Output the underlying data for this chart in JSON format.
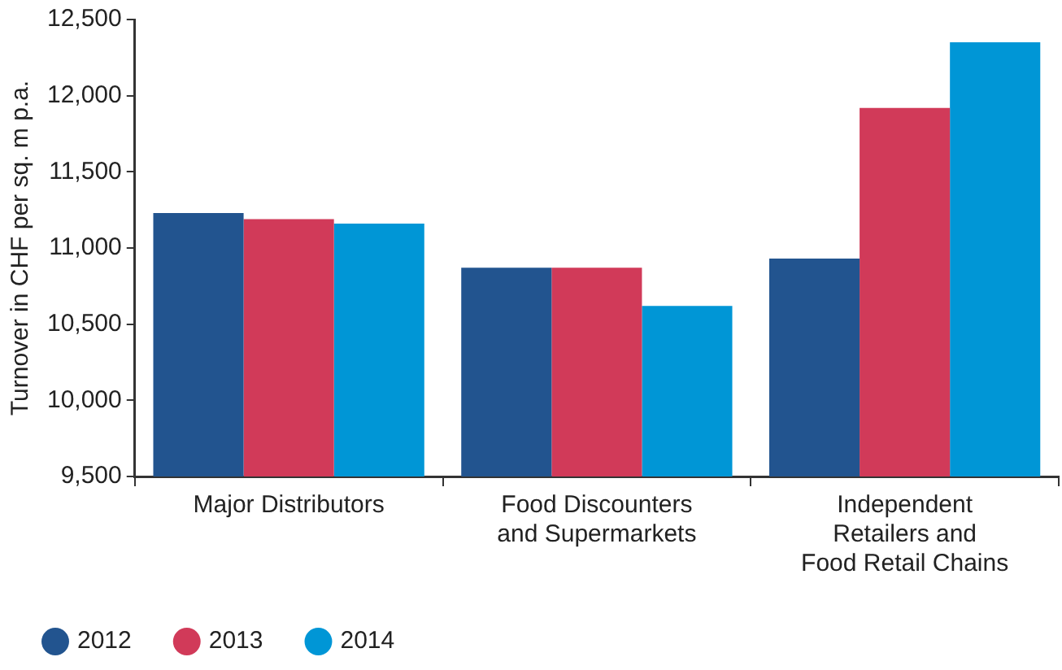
{
  "chart_data": {
    "type": "bar",
    "ylabel": "Turnover in CHF per sq. m p.a.",
    "categories": [
      "Major Distributors",
      "Food Discounters\nand Supermarkets",
      "Independent\nRetailers and\nFood Retail Chains"
    ],
    "series": [
      {
        "name": "2012",
        "color": "#22548f",
        "values": [
          11230,
          10870,
          10930
        ]
      },
      {
        "name": "2013",
        "color": "#d13a59",
        "values": [
          11190,
          10870,
          11920
        ]
      },
      {
        "name": "2014",
        "color": "#0096d6",
        "values": [
          11160,
          10620,
          12350
        ]
      }
    ],
    "ylim": [
      9500,
      12500
    ],
    "yticks": [
      {
        "value": 9500,
        "label": "9,500"
      },
      {
        "value": 10000,
        "label": "10,000"
      },
      {
        "value": 10500,
        "label": "10,500"
      },
      {
        "value": 11000,
        "label": "11,000"
      },
      {
        "value": 11500,
        "label": "11,500"
      },
      {
        "value": 12000,
        "label": "12,000"
      },
      {
        "value": 12500,
        "label": "12,500"
      }
    ],
    "grid": false,
    "legend": "bottom"
  }
}
